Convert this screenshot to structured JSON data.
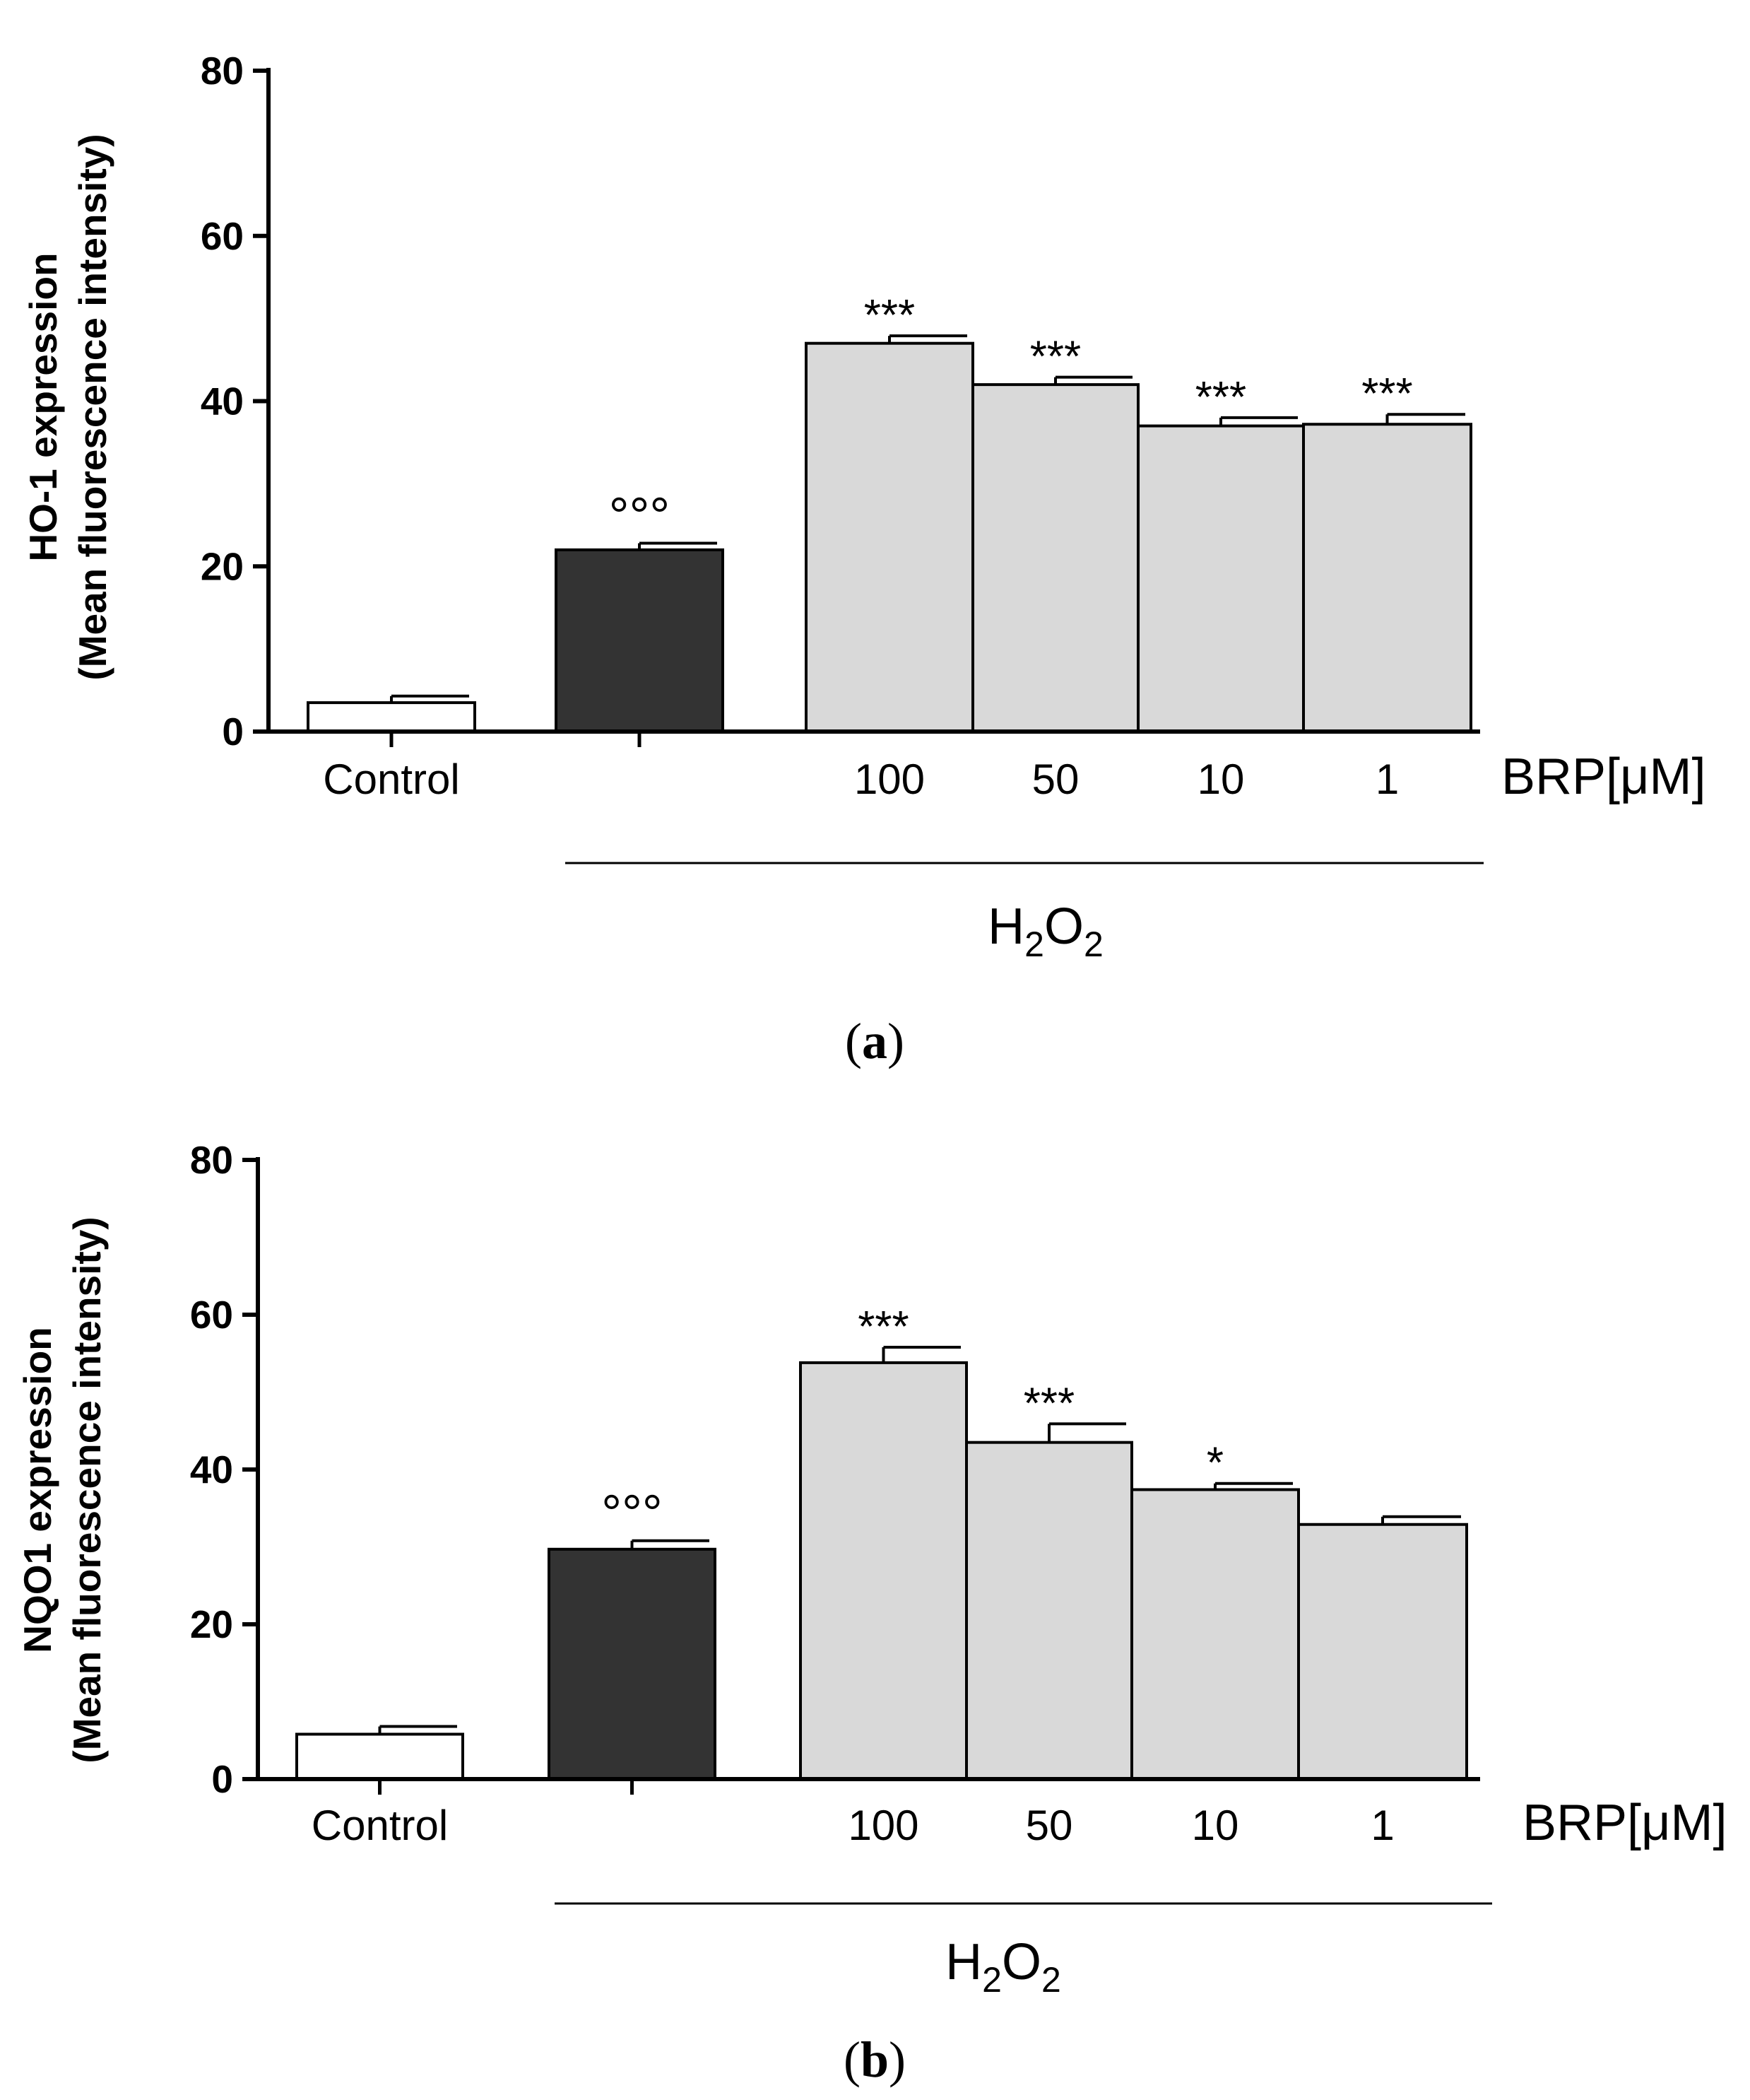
{
  "colors": {
    "control": "#ffffff",
    "h2o2": "#333333",
    "brp": "#d9d9d9",
    "stroke": "#000000"
  },
  "chart_data": [
    {
      "type": "bar",
      "panel_label": "a",
      "ylabel_line1": "HO-1 expression",
      "ylabel_line2": "(Mean fluorescence intensity)",
      "ylim": [
        0,
        80
      ],
      "yticks": [
        "0",
        "20",
        "40",
        "60",
        "80"
      ],
      "categories": [
        "Control",
        "",
        "100",
        "50",
        "10",
        "1"
      ],
      "values": [
        3.5,
        22,
        47,
        42,
        37,
        37.2
      ],
      "errors": [
        0.8,
        0.8,
        0.9,
        0.9,
        1.0,
        1.2
      ],
      "annotations": [
        "",
        "°°°",
        "***",
        "***",
        "***",
        "***"
      ],
      "unit_label": "BRP[μM]",
      "group_label": {
        "base": "H",
        "sub1": "2",
        "mid": "O",
        "sub2": "2"
      }
    },
    {
      "type": "bar",
      "panel_label": "b",
      "ylabel_line1": "NQO1 expression",
      "ylabel_line2": "(Mean fluorescence intensity)",
      "ylim": [
        0,
        80
      ],
      "yticks": [
        "0",
        "20",
        "40",
        "60",
        "80"
      ],
      "categories": [
        "Control",
        "",
        "100",
        "50",
        "10",
        "1"
      ],
      "values": [
        5.8,
        29.7,
        53.8,
        43.5,
        37.4,
        32.9
      ],
      "errors": [
        1.0,
        1.1,
        2.0,
        2.4,
        0.8,
        1.0
      ],
      "annotations": [
        "",
        "°°°",
        "***",
        "***",
        "*",
        ""
      ],
      "unit_label": "BRP[μM]",
      "group_label": {
        "base": "H",
        "sub1": "2",
        "mid": "O",
        "sub2": "2"
      }
    }
  ]
}
